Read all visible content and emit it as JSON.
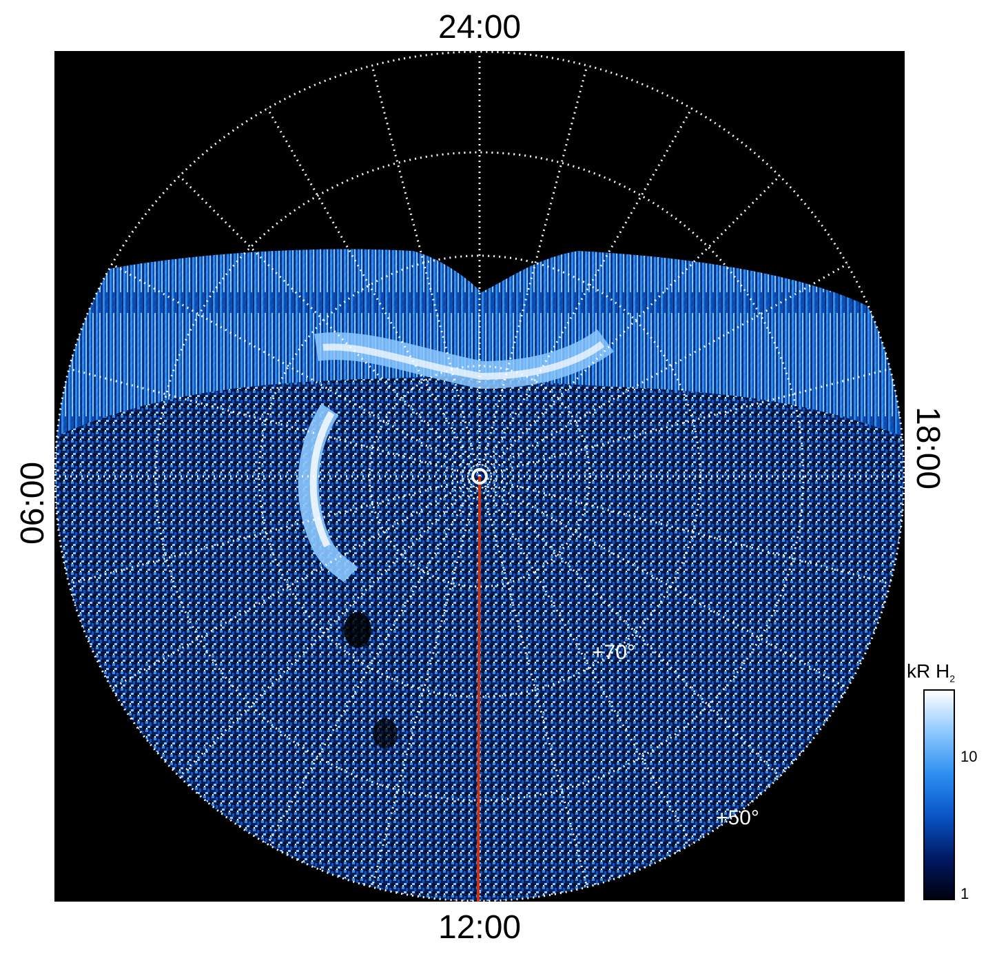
{
  "labels": {
    "top": "24:00",
    "bottom": "12:00",
    "left": "06:00",
    "right": "18:00"
  },
  "latitude_labels": [
    "+70°",
    "+50°"
  ],
  "colorbar": {
    "title_main": "kR H",
    "title_sub": "2",
    "ticks": [
      "10",
      "1"
    ],
    "colors": [
      "#000010",
      "#001a66",
      "#0a55c8",
      "#2d8ff0",
      "#8cc8ff",
      "#ffffff"
    ]
  },
  "colors": {
    "background": "#000000",
    "grid": "#ffffff",
    "meridian": "#cc3311"
  }
}
